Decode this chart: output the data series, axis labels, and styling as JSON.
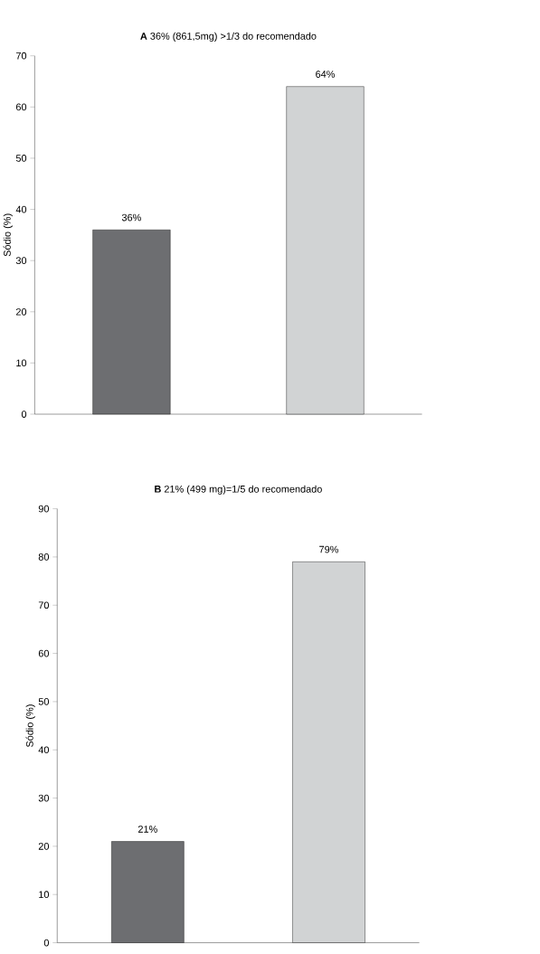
{
  "chart_data": [
    {
      "type": "bar",
      "title": "**A**   36% (861,5mg) >1/3 do recomendado",
      "ylabel": "Sódio (%)",
      "categories": [
        null,
        null
      ],
      "values": [
        36,
        64
      ],
      "colors": [
        "#6d6e71",
        "#d1d3d4"
      ],
      "value_labels": [
        "36%",
        "64%"
      ],
      "ylim": [
        0,
        70
      ],
      "yticks": [
        0,
        10,
        20,
        30,
        40,
        50,
        60,
        70
      ]
    },
    {
      "type": "bar",
      "title": "**B**   21% (499 mg)=1/5 do recomendado",
      "ylabel": "Sódio (%)",
      "categories": [
        null,
        null
      ],
      "values": [
        21,
        79
      ],
      "colors": [
        "#6d6e71",
        "#d1d3d4"
      ],
      "value_labels": [
        "21%",
        "79%"
      ],
      "ylim": [
        0,
        90
      ],
      "yticks": [
        0,
        10,
        20,
        30,
        40,
        50,
        60,
        70,
        80,
        90
      ]
    }
  ]
}
